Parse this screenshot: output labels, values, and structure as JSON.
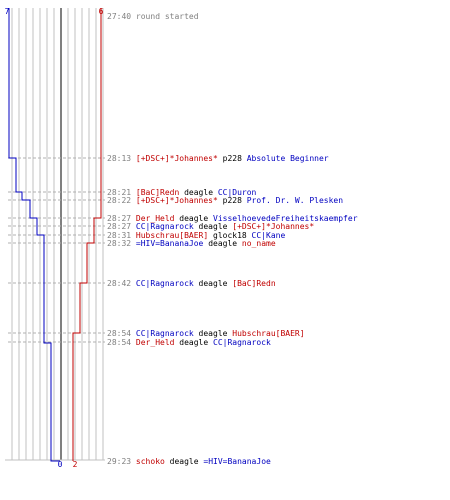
{
  "colors": {
    "team_blue": "#0000c0",
    "team_red": "#c00000",
    "grid": "#c0c0c0",
    "center": "#808080",
    "dashed": "#b0b0b0",
    "time_text": "#808080"
  },
  "scores": {
    "blue_start": "7",
    "red_start": "6",
    "blue_end": "0",
    "red_end": "2"
  },
  "events": [
    {
      "time": "27:40",
      "note": "round started"
    },
    {
      "time": "28:13",
      "killer": "[+DSC+]*Johannes*",
      "killer_team": "red",
      "weapon": "p228",
      "victim": "Absolute Beginner",
      "victim_team": "blue"
    },
    {
      "time": "28:21",
      "killer": "[BaC]Redn",
      "killer_team": "red",
      "weapon": "deagle",
      "victim": "CC|Duron",
      "victim_team": "blue"
    },
    {
      "time": "28:22",
      "killer": "[+DSC+]*Johannes*",
      "killer_team": "red",
      "weapon": "p228",
      "victim": "Prof. Dr. W. Plesken",
      "victim_team": "blue"
    },
    {
      "time": "28:27",
      "killer": "Der_Held",
      "killer_team": "red",
      "weapon": "deagle",
      "victim": "VisselhoevedeFreiheitskaempfer",
      "victim_team": "blue"
    },
    {
      "time": "28:27",
      "killer": "CC|Ragnarock",
      "killer_team": "blue",
      "weapon": "deagle",
      "victim": "[+DSC+]*Johannes*",
      "victim_team": "red"
    },
    {
      "time": "28:31",
      "killer": "Hubschrau[BAER]",
      "killer_team": "red",
      "weapon": "glock18",
      "victim": "CC|Kane",
      "victim_team": "blue"
    },
    {
      "time": "28:32",
      "killer": "=HIV=BananaJoe",
      "killer_team": "blue",
      "weapon": "deagle",
      "victim": "no_name",
      "victim_team": "red"
    },
    {
      "time": "28:42",
      "killer": "CC|Ragnarock",
      "killer_team": "blue",
      "weapon": "deagle",
      "victim": "[BaC]Redn",
      "victim_team": "red"
    },
    {
      "time": "28:54",
      "killer": "CC|Ragnarock",
      "killer_team": "blue",
      "weapon": "deagle",
      "victim": "Hubschrau[BAER]",
      "victim_team": "red"
    },
    {
      "time": "28:54",
      "killer": "Der_Held",
      "killer_team": "red",
      "weapon": "deagle",
      "victim": "CC|Ragnarock",
      "victim_team": "blue"
    },
    {
      "time": "29:23",
      "killer": "schoko",
      "killer_team": "red",
      "weapon": "deagle",
      "victim": "=HIV=BananaJoe",
      "victim_team": "blue"
    }
  ]
}
